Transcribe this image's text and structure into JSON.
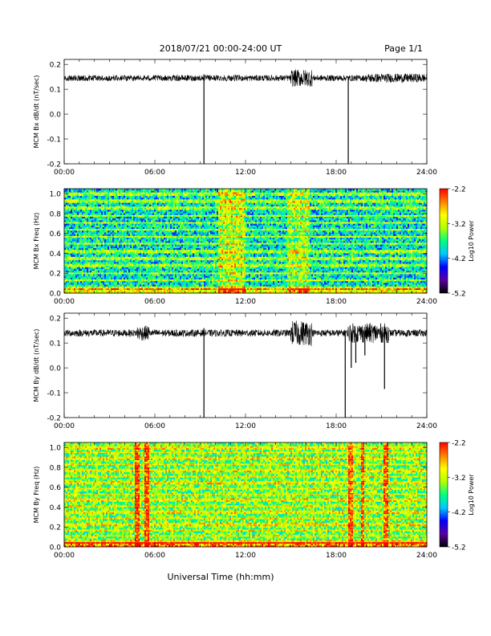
{
  "header": {
    "title": "2018/07/21  00:00-24:00 UT",
    "page": "Page 1/1"
  },
  "xlabel": "Universal Time (hh:mm)",
  "colors": {
    "trace": "#000000",
    "colorbar_stops": [
      "#000000",
      "#5a00a0",
      "#0000ff",
      "#00c8ff",
      "#00ff80",
      "#b4ff00",
      "#ffff00",
      "#ff8000",
      "#ff0000"
    ]
  },
  "chart_data": [
    {
      "type": "line",
      "ylabel": "MCM Bx dB/dt (nT/sec)",
      "xlim": [
        0,
        24
      ],
      "ylim": [
        -0.2,
        0.22
      ],
      "x_ticks": [
        "00:00",
        "06:00",
        "12:00",
        "18:00",
        "24:00"
      ],
      "y_ticks": [
        "0.2",
        "0.1",
        "0.0",
        "-0.1",
        "-0.2"
      ],
      "baseline": 0.145,
      "noise_amplitude": 0.012,
      "active_intervals": [
        {
          "start": 15.0,
          "end": 16.4,
          "amplitude": 0.035
        },
        {
          "start": 20.0,
          "end": 24.0,
          "amplitude": 0.018
        }
      ],
      "spikes": [
        {
          "time": 9.25,
          "min": -0.2,
          "max": 0.16
        },
        {
          "time": 18.8,
          "min": -0.2,
          "max": 0.15
        }
      ]
    },
    {
      "type": "heatmap",
      "ylabel": "MCM Bx Freq (Hz)",
      "xlim": [
        0,
        24
      ],
      "ylim": [
        0,
        1.05
      ],
      "x_ticks": [
        "00:00",
        "06:00",
        "12:00",
        "18:00",
        "24:00"
      ],
      "y_ticks": [
        "1.0",
        "0.8",
        "0.6",
        "0.4",
        "0.2",
        "0.0"
      ],
      "colorbar": {
        "label": "Log10 Power",
        "ticks": [
          "-2.2",
          "-3.2",
          "-4.2",
          "-5.2"
        ],
        "range": [
          -5.2,
          -2.2
        ]
      },
      "background_level": -3.9,
      "harmonic_lines_hz": [
        0.05,
        0.13,
        0.2,
        0.28,
        0.35,
        0.42,
        0.5,
        0.57,
        0.64,
        0.71,
        0.78,
        0.86,
        0.93,
        1.0
      ],
      "bright_intervals": [
        {
          "start": 10.2,
          "end": 12.0,
          "level": -3.2
        },
        {
          "start": 14.8,
          "end": 16.2,
          "level": -3.4
        }
      ]
    },
    {
      "type": "line",
      "ylabel": "MCM By dB/dt (nT/sec)",
      "xlim": [
        0,
        24
      ],
      "ylim": [
        -0.2,
        0.22
      ],
      "x_ticks": [
        "00:00",
        "06:00",
        "12:00",
        "18:00",
        "24:00"
      ],
      "y_ticks": [
        "0.2",
        "0.1",
        "0.0",
        "-0.1",
        "-0.2"
      ],
      "baseline": 0.14,
      "noise_amplitude": 0.014,
      "active_intervals": [
        {
          "start": 4.8,
          "end": 5.6,
          "amplitude": 0.03
        },
        {
          "start": 15.0,
          "end": 16.4,
          "amplitude": 0.05
        },
        {
          "start": 18.8,
          "end": 21.5,
          "amplitude": 0.04
        }
      ],
      "spikes": [
        {
          "time": 9.25,
          "min": -0.2,
          "max": 0.16
        },
        {
          "time": 18.6,
          "min": -0.2,
          "max": 0.15
        },
        {
          "time": 19.0,
          "min": 0.0,
          "max": 0.14
        },
        {
          "time": 19.3,
          "min": 0.02,
          "max": 0.14
        },
        {
          "time": 19.9,
          "min": 0.05,
          "max": 0.14
        },
        {
          "time": 21.2,
          "min": -0.085,
          "max": 0.14
        }
      ]
    },
    {
      "type": "heatmap",
      "ylabel": "MCM By Freq (Hz)",
      "xlim": [
        0,
        24
      ],
      "ylim": [
        0,
        1.05
      ],
      "x_ticks": [
        "00:00",
        "06:00",
        "12:00",
        "18:00",
        "24:00"
      ],
      "y_ticks": [
        "1.0",
        "0.8",
        "0.6",
        "0.4",
        "0.2",
        "0.0"
      ],
      "colorbar": {
        "label": "Log10 Power",
        "ticks": [
          "-2.2",
          "-3.2",
          "-4.2",
          "-5.2"
        ],
        "range": [
          -5.2,
          -2.2
        ]
      },
      "background_level": -3.5,
      "harmonic_lines_hz": [
        0.05,
        0.11,
        0.17,
        0.23,
        0.29,
        0.35,
        0.41,
        0.47,
        0.53,
        0.59,
        0.65,
        0.71,
        0.77,
        0.83,
        0.89,
        0.95,
        1.0
      ],
      "bright_intervals": [
        {
          "start": 4.7,
          "end": 4.95,
          "level": -2.3
        },
        {
          "start": 5.35,
          "end": 5.6,
          "level": -2.3
        },
        {
          "start": 18.8,
          "end": 19.1,
          "level": -2.4
        },
        {
          "start": 19.6,
          "end": 19.9,
          "level": -2.4
        },
        {
          "start": 21.1,
          "end": 21.4,
          "level": -2.4
        }
      ]
    }
  ]
}
